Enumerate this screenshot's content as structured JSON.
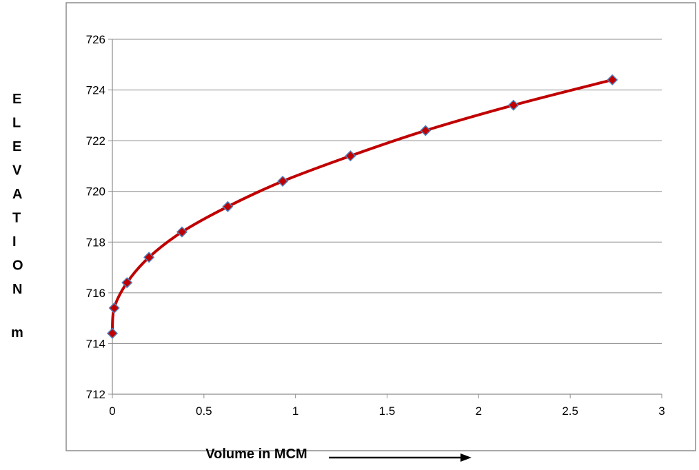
{
  "chart_data": {
    "type": "scatter",
    "title": "",
    "xlabel": "Volume in MCM",
    "ylabel_letters": [
      "E",
      "L",
      "E",
      "V",
      "A",
      "T",
      "I",
      "O",
      "N"
    ],
    "ylabel_unit": "m",
    "xlim": [
      0,
      3
    ],
    "ylim": [
      712,
      726
    ],
    "x_ticks": [
      0,
      0.5,
      1,
      1.5,
      2,
      2.5,
      3
    ],
    "x_tick_labels": [
      "0",
      "0.5",
      "1",
      "1.5",
      "2",
      "2.5",
      "3"
    ],
    "y_ticks": [
      712,
      714,
      716,
      718,
      720,
      722,
      724,
      726
    ],
    "y_tick_labels": [
      "712",
      "714",
      "716",
      "718",
      "720",
      "722",
      "724",
      "726"
    ],
    "grid": "horizontal",
    "legend": "none",
    "series": [
      {
        "line_color": "#c00000",
        "marker_color": "#c00000",
        "marker_edge_color": "#4f81bd",
        "marker": "diamond",
        "smooth": true,
        "x": [
          0,
          0.01,
          0.08,
          0.2,
          0.38,
          0.63,
          0.93,
          1.3,
          1.71,
          2.19,
          2.73
        ],
        "y": [
          714.4,
          715.4,
          716.4,
          717.4,
          718.4,
          719.4,
          720.4,
          721.4,
          722.4,
          723.4,
          724.4
        ]
      }
    ]
  }
}
